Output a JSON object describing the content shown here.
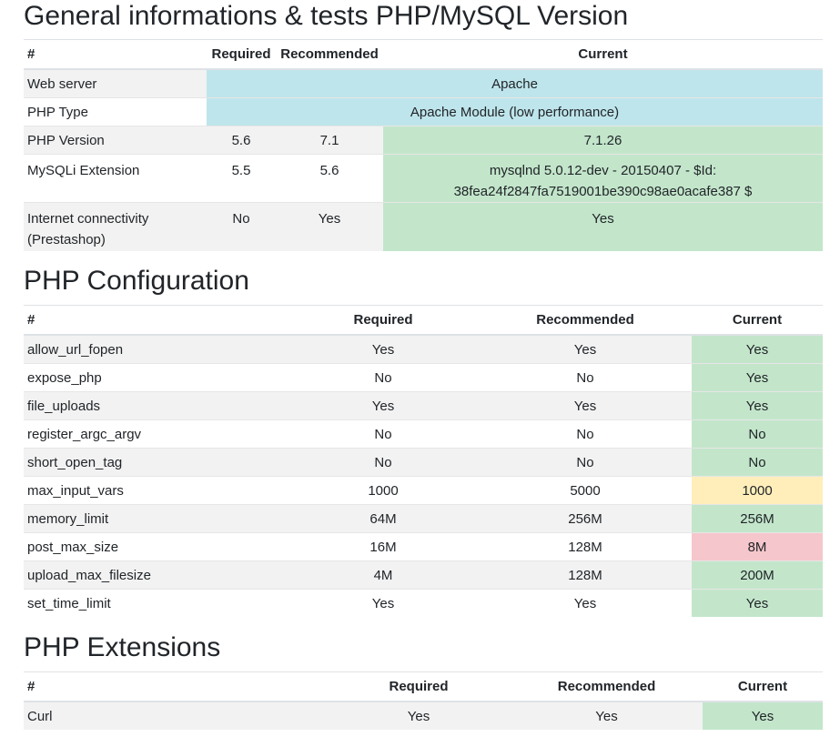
{
  "section1": {
    "title": "General informations & tests PHP/MySQL Version",
    "headers": [
      "#",
      "Required",
      "Recommended",
      "Current"
    ],
    "rows": [
      {
        "name": "Web server",
        "current": "Apache"
      },
      {
        "name": "PHP Type",
        "current": "Apache Module (low performance)"
      },
      {
        "name": "PHP Version",
        "required": "5.6",
        "recommended": "7.1",
        "current": "7.1.26"
      },
      {
        "name": "MySQLi Extension",
        "required": "5.5",
        "recommended": "5.6",
        "current_line1": "mysqlnd 5.0.12-dev - 20150407 - $Id:",
        "current_line2": "38fea24f2847fa7519001be390c98ae0acafe387 $"
      },
      {
        "name_line1": "Internet connectivity",
        "name_line2": "(Prestashop)",
        "required": "No",
        "recommended": "Yes",
        "current": "Yes"
      }
    ]
  },
  "section2": {
    "title": "PHP Configuration",
    "headers": [
      "#",
      "Required",
      "Recommended",
      "Current"
    ],
    "rows": [
      {
        "name": "allow_url_fopen",
        "required": "Yes",
        "recommended": "Yes",
        "current": "Yes"
      },
      {
        "name": "expose_php",
        "required": "No",
        "recommended": "No",
        "current": "Yes"
      },
      {
        "name": "file_uploads",
        "required": "Yes",
        "recommended": "Yes",
        "current": "Yes"
      },
      {
        "name": "register_argc_argv",
        "required": "No",
        "recommended": "No",
        "current": "No"
      },
      {
        "name": "short_open_tag",
        "required": "No",
        "recommended": "No",
        "current": "No"
      },
      {
        "name": "max_input_vars",
        "required": "1000",
        "recommended": "5000",
        "current": "1000"
      },
      {
        "name": "memory_limit",
        "required": "64M",
        "recommended": "256M",
        "current": "256M"
      },
      {
        "name": "post_max_size",
        "required": "16M",
        "recommended": "128M",
        "current": "8M"
      },
      {
        "name": "upload_max_filesize",
        "required": "4M",
        "recommended": "128M",
        "current": "200M"
      },
      {
        "name": "set_time_limit",
        "required": "Yes",
        "recommended": "Yes",
        "current": "Yes"
      }
    ]
  },
  "section3": {
    "title": "PHP Extensions",
    "headers": [
      "#",
      "Required",
      "Recommended",
      "Current"
    ],
    "rows": [
      {
        "name": "Curl",
        "required": "Yes",
        "recommended": "Yes",
        "current": "Yes"
      }
    ]
  },
  "colors": {
    "info": "#bee5eb",
    "success": "#c3e6cb",
    "warning": "#ffeeba",
    "danger": "#f5c6cb",
    "stripe": "#f2f2f2"
  }
}
